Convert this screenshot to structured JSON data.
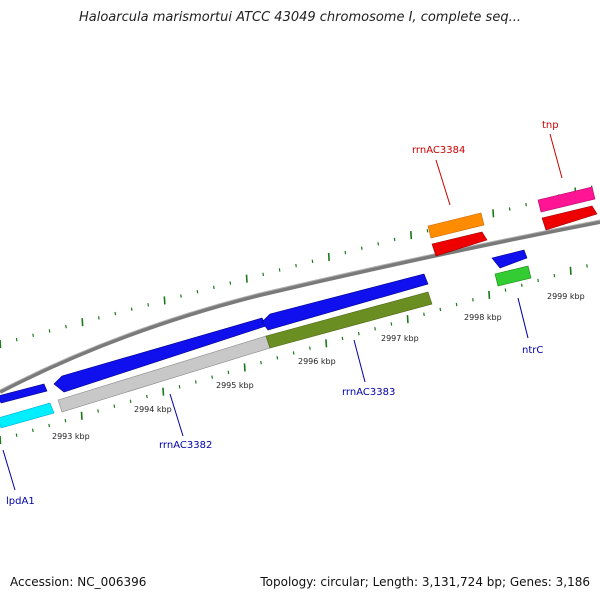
{
  "title": "Haloarcula marismortui ATCC 43049 chromosome I, complete seq...",
  "footer": {
    "accession": "Accession: NC_006396",
    "summary": "Topology: circular; Length: 3,131,724 bp; Genes: 3,186"
  },
  "colors": {
    "backbone": "#808080",
    "tick": "#1a7a1a",
    "label_red": "#cc0000",
    "label_blue": "#0000aa"
  },
  "scale_labels": [
    "2993 kbp",
    "2994 kbp",
    "2995 kbp",
    "2996 kbp",
    "2997 kbp",
    "2998 kbp",
    "2999 kbp"
  ],
  "features": [
    {
      "name": "lpdA1",
      "label_color": "blue",
      "icon": "gene-arrow"
    },
    {
      "name": "rrnAC3382",
      "label_color": "blue",
      "icon": "gene-arrow"
    },
    {
      "name": "rrnAC3383",
      "label_color": "blue",
      "icon": "gene-arrow"
    },
    {
      "name": "ntrC",
      "label_color": "blue",
      "icon": "gene-arrow"
    },
    {
      "name": "rrnAC3384",
      "label_color": "red",
      "icon": "gene-arrow"
    },
    {
      "name": "tnp",
      "label_color": "red",
      "icon": "gene-arrow"
    }
  ]
}
